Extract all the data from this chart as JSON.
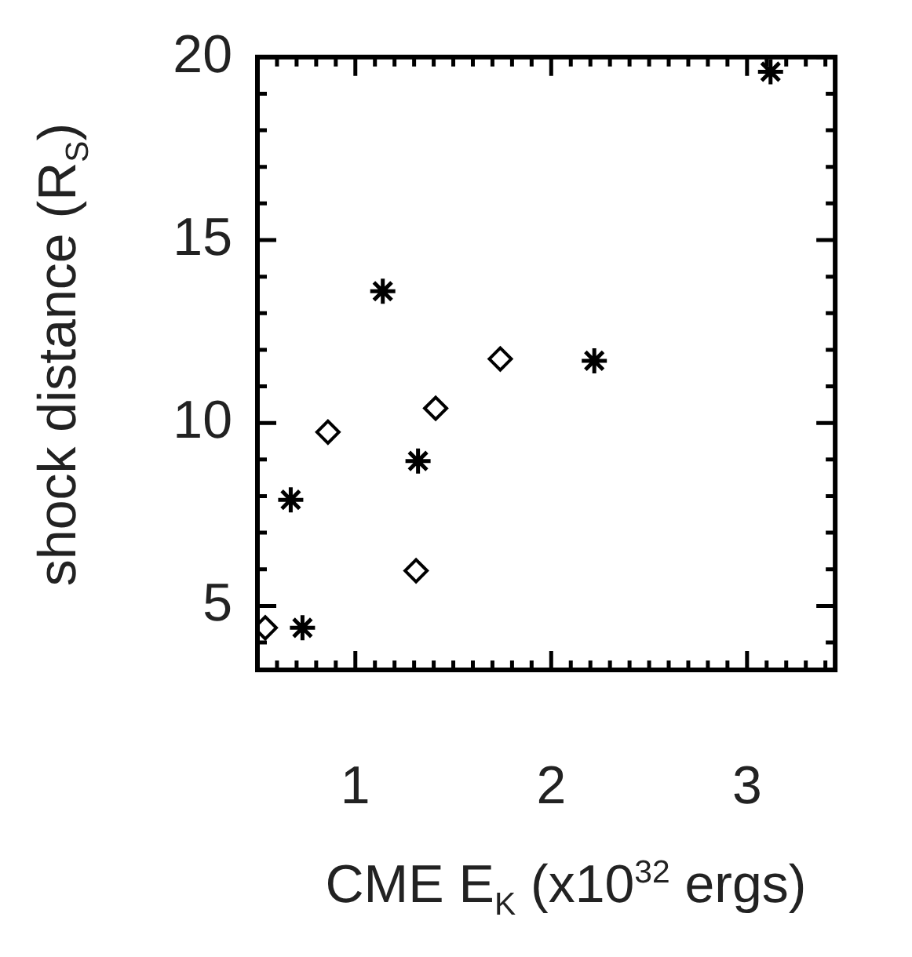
{
  "chart_data": {
    "type": "scatter",
    "xlabel": "CME E$_{K}$ (x10$^{32}$ ergs)",
    "ylabel": "shock distance (R$_{S}$)",
    "xlim": [
      0.5,
      3.45
    ],
    "xticks": [
      {
        "value": 0.6,
        "label": null
      },
      {
        "value": 0.7,
        "label": null
      },
      {
        "value": 0.8,
        "label": null
      },
      {
        "value": 0.9,
        "label": null
      },
      1,
      {
        "value": 1.1,
        "label": null
      },
      {
        "value": 1.2,
        "label": null
      },
      {
        "value": 1.3,
        "label": null
      },
      {
        "value": 1.4,
        "label": null
      },
      {
        "value": 1.5,
        "label": null
      },
      {
        "value": 1.6,
        "label": null
      },
      {
        "value": 1.7,
        "label": null
      },
      {
        "value": 1.8,
        "label": null
      },
      {
        "value": 1.9,
        "label": null
      },
      2,
      {
        "value": 2.1,
        "label": null
      },
      {
        "value": 2.2,
        "label": null
      },
      {
        "value": 2.3,
        "label": null
      },
      {
        "value": 2.4,
        "label": null
      },
      {
        "value": 2.5,
        "label": null
      },
      {
        "value": 2.6,
        "label": null
      },
      {
        "value": 2.7,
        "label": null
      },
      {
        "value": 2.8,
        "label": null
      },
      {
        "value": 2.9,
        "label": null
      },
      3,
      {
        "value": 3.1,
        "label": null
      },
      {
        "value": 3.2,
        "label": null
      },
      {
        "value": 3.3,
        "label": null
      },
      {
        "value": 3.4,
        "label": null
      }
    ],
    "ylim": [
      3.25,
      20
    ],
    "yticks": [
      {
        "value": 4,
        "label": null
      },
      5,
      {
        "value": 6,
        "label": null
      },
      {
        "value": 7,
        "label": null
      },
      {
        "value": 8,
        "label": null
      },
      {
        "value": 9,
        "label": null
      },
      10,
      {
        "value": 11,
        "label": null
      },
      {
        "value": 12,
        "label": null
      },
      {
        "value": 13,
        "label": null
      },
      {
        "value": 14,
        "label": null
      },
      15,
      {
        "value": 16,
        "label": null
      },
      {
        "value": 17,
        "label": null
      },
      {
        "value": 18,
        "label": null
      },
      {
        "value": 19,
        "label": null
      },
      20
    ],
    "grid": false,
    "legend": false,
    "series": [
      {
        "color": "#000000",
        "marker": "cross",
        "x": [
          3.12,
          1.14,
          2.22,
          1.32,
          0.67,
          0.73
        ],
        "values": [
          19.6,
          13.6,
          11.7,
          8.96,
          7.9,
          4.4
        ]
      },
      {
        "color": "#000000",
        "marker": "diamond",
        "x": [
          1.74,
          1.41,
          0.86,
          1.31,
          0.54
        ],
        "values": [
          11.75,
          10.4,
          9.75,
          5.96,
          4.4
        ]
      }
    ]
  }
}
